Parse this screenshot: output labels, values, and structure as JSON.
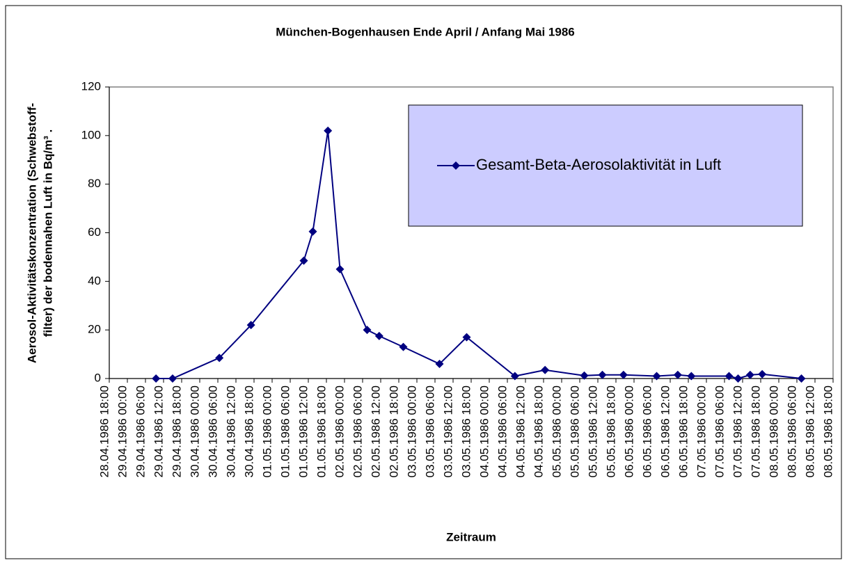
{
  "chart_data": {
    "type": "line",
    "title": "München-Bogenhausen Ende April / Anfang Mai 1986",
    "x_label": "Zeitraum",
    "y_label": [
      "Aerosol-Aktivitätskonzentration (Schwebstoff-",
      "filter) der bodennahen Luft in Bq/m³ ."
    ],
    "x": [
      "1986-04-29T09:30",
      "1986-04-29T15:00",
      "1986-04-30T06:30",
      "1986-04-30T17:00",
      "1986-05-01T10:30",
      "1986-05-01T13:30",
      "1986-05-01T18:30",
      "1986-05-01T22:30",
      "1986-05-02T07:30",
      "1986-05-02T11:30",
      "1986-05-02T19:30",
      "1986-05-03T07:30",
      "1986-05-03T16:30",
      "1986-05-04T08:30",
      "1986-05-04T18:30",
      "1986-05-05T07:30",
      "1986-05-05T13:30",
      "1986-05-05T20:30",
      "1986-05-06T07:30",
      "1986-05-06T14:30",
      "1986-05-06T19:00",
      "1986-05-07T07:30",
      "1986-05-07T10:30",
      "1986-05-07T14:30",
      "1986-05-07T18:30",
      "1986-05-08T07:30"
    ],
    "series": [
      {
        "name": "Gesamt-Beta-Aerosolaktivität in Luft",
        "color": "#000080",
        "values": [
          0,
          0,
          8.5,
          22,
          48.5,
          60.5,
          102,
          45,
          20,
          17.5,
          13,
          6,
          17,
          1,
          3.5,
          1.2,
          1.5,
          1.5,
          1,
          1.5,
          1,
          1,
          0,
          1.5,
          1.8,
          0
        ]
      }
    ],
    "xlim": [
      "1986-04-28T18:00",
      "1986-05-08T18:00"
    ],
    "xticks": [
      {
        "value": "1986-04-28T18:00",
        "label": "28.04.1986 18:00"
      },
      {
        "value": "1986-04-29T00:00",
        "label": "29.04.1986 00:00"
      },
      {
        "value": "1986-04-29T06:00",
        "label": "29.04.1986 06:00"
      },
      {
        "value": "1986-04-29T12:00",
        "label": "29.04.1986 12:00"
      },
      {
        "value": "1986-04-29T18:00",
        "label": "29.04.1986 18:00"
      },
      {
        "value": "1986-04-30T00:00",
        "label": "30.04.1986 00:00"
      },
      {
        "value": "1986-04-30T06:00",
        "label": "30.04.1986 06:00"
      },
      {
        "value": "1986-04-30T12:00",
        "label": "30.04.1986 12:00"
      },
      {
        "value": "1986-04-30T18:00",
        "label": "30.04.1986 18:00"
      },
      {
        "value": "1986-05-01T00:00",
        "label": "01.05.1986 00:00"
      },
      {
        "value": "1986-05-01T06:00",
        "label": "01.05.1986 06:00"
      },
      {
        "value": "1986-05-01T12:00",
        "label": "01.05.1986 12:00"
      },
      {
        "value": "1986-05-01T18:00",
        "label": "01.05.1986 18:00"
      },
      {
        "value": "1986-05-02T00:00",
        "label": "02.05.1986 00:00"
      },
      {
        "value": "1986-05-02T06:00",
        "label": "02.05.1986 06:00"
      },
      {
        "value": "1986-05-02T12:00",
        "label": "02.05.1986 12:00"
      },
      {
        "value": "1986-05-02T18:00",
        "label": "02.05.1986 18:00"
      },
      {
        "value": "1986-05-03T00:00",
        "label": "03.05.1986 00:00"
      },
      {
        "value": "1986-05-03T06:00",
        "label": "03.05.1986 06:00"
      },
      {
        "value": "1986-05-03T12:00",
        "label": "03.05.1986 12:00"
      },
      {
        "value": "1986-05-03T18:00",
        "label": "03.05.1986 18:00"
      },
      {
        "value": "1986-05-04T00:00",
        "label": "04.05.1986 00:00"
      },
      {
        "value": "1986-05-04T06:00",
        "label": "04.05.1986 06:00"
      },
      {
        "value": "1986-05-04T12:00",
        "label": "04.05.1986 12:00"
      },
      {
        "value": "1986-05-04T18:00",
        "label": "04.05.1986 18:00"
      },
      {
        "value": "1986-05-05T00:00",
        "label": "05.05.1986 00:00"
      },
      {
        "value": "1986-05-05T06:00",
        "label": "05.05.1986 06:00"
      },
      {
        "value": "1986-05-05T12:00",
        "label": "05.05.1986 12:00"
      },
      {
        "value": "1986-05-05T18:00",
        "label": "05.05.1986 18:00"
      },
      {
        "value": "1986-05-06T00:00",
        "label": "06.05.1986 00:00"
      },
      {
        "value": "1986-05-06T06:00",
        "label": "06.05.1986 06:00"
      },
      {
        "value": "1986-05-06T12:00",
        "label": "06.05.1986 12:00"
      },
      {
        "value": "1986-05-06T18:00",
        "label": "06.05.1986 18:00"
      },
      {
        "value": "1986-05-07T00:00",
        "label": "07.05.1986 00:00"
      },
      {
        "value": "1986-05-07T06:00",
        "label": "07.05.1986 06:00"
      },
      {
        "value": "1986-05-07T12:00",
        "label": "07.05.1986 12:00"
      },
      {
        "value": "1986-05-07T18:00",
        "label": "07.05.1986 18:00"
      },
      {
        "value": "1986-05-08T00:00",
        "label": "08.05.1986 00:00"
      },
      {
        "value": "1986-05-08T06:00",
        "label": "08.05.1986 06:00"
      },
      {
        "value": "1986-05-08T12:00",
        "label": "08.05.1986 12:00"
      },
      {
        "value": "1986-05-08T18:00",
        "label": "08.05.1986 18:00"
      }
    ],
    "ylim": [
      0,
      120
    ],
    "yticks": [
      0,
      20,
      40,
      60,
      80,
      100,
      120
    ],
    "grid": false,
    "legend": "upper right",
    "legend_color": "#ccccff"
  }
}
